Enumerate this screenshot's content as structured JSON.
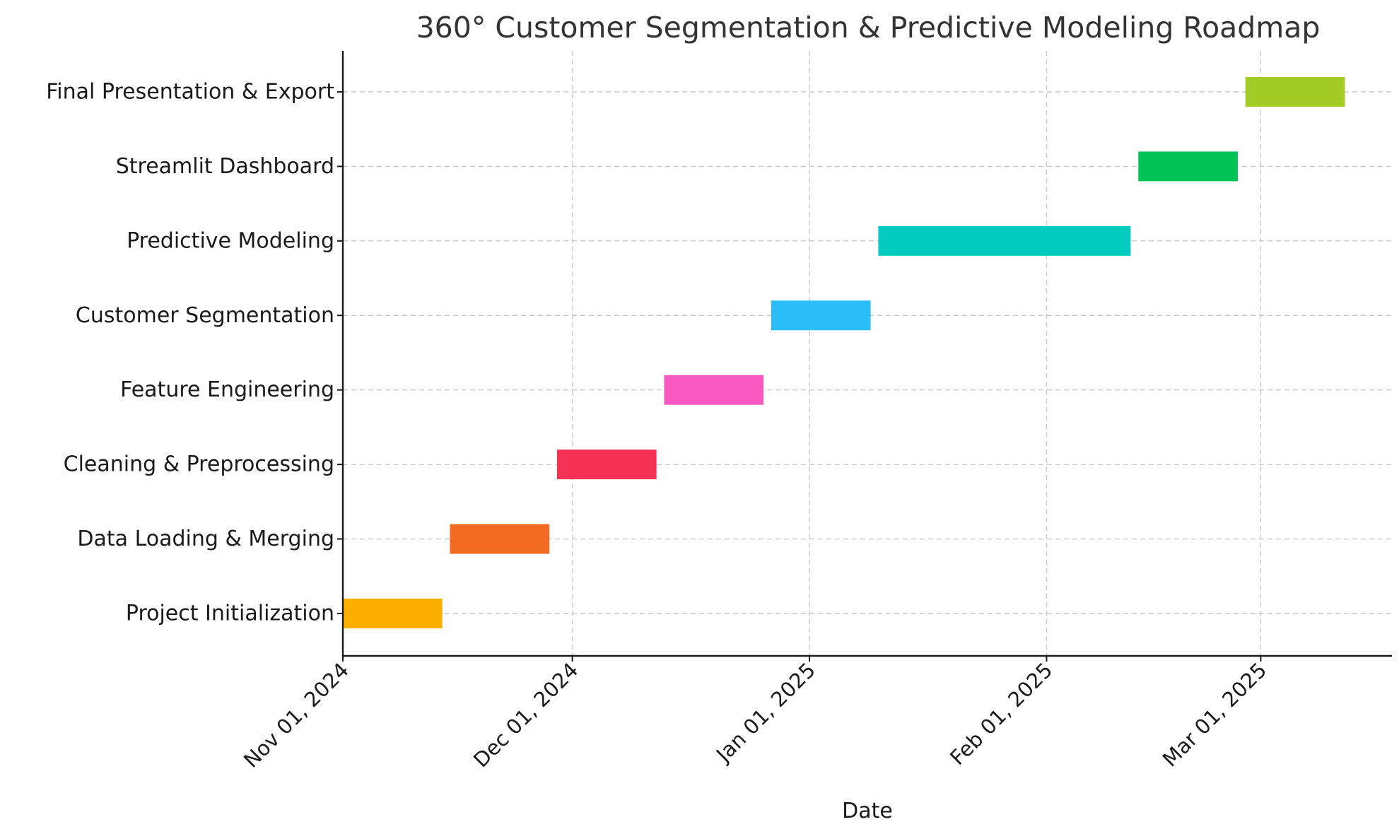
{
  "chart_data": {
    "type": "gantt",
    "title": "360° Customer Segmentation & Predictive Modeling Roadmap",
    "xlabel": "Date",
    "ylabel": "",
    "xlim": [
      "2024-11-01",
      "2025-03-12"
    ],
    "x_ticks": [
      {
        "date": "2024-11-01",
        "label": "Nov 01, 2024"
      },
      {
        "date": "2024-12-01",
        "label": "Dec 01, 2024"
      },
      {
        "date": "2025-01-01",
        "label": "Jan 01, 2025"
      },
      {
        "date": "2025-02-01",
        "label": "Feb 01, 2025"
      },
      {
        "date": "2025-03-01",
        "label": "Mar 01, 2025"
      }
    ],
    "grid": true,
    "legend": "none",
    "tasks": [
      {
        "name": "Project Initialization",
        "start": "2024-11-01",
        "end": "2024-11-14",
        "color": "#fbad00"
      },
      {
        "name": "Data Loading & Merging",
        "start": "2024-11-15",
        "end": "2024-11-28",
        "color": "#f26b21"
      },
      {
        "name": "Cleaning & Preprocessing",
        "start": "2024-11-29",
        "end": "2024-12-12",
        "color": "#f53155"
      },
      {
        "name": "Feature Engineering",
        "start": "2024-12-13",
        "end": "2024-12-26",
        "color": "#f759c0"
      },
      {
        "name": "Customer Segmentation",
        "start": "2024-12-27",
        "end": "2025-01-09",
        "color": "#2bbdf8"
      },
      {
        "name": "Predictive Modeling",
        "start": "2025-01-10",
        "end": "2025-02-12",
        "color": "#04cbc0"
      },
      {
        "name": "Streamlit Dashboard",
        "start": "2025-02-13",
        "end": "2025-02-26",
        "color": "#00c257"
      },
      {
        "name": "Final Presentation & Export",
        "start": "2025-02-27",
        "end": "2025-03-12",
        "color": "#a3cb25"
      }
    ]
  }
}
